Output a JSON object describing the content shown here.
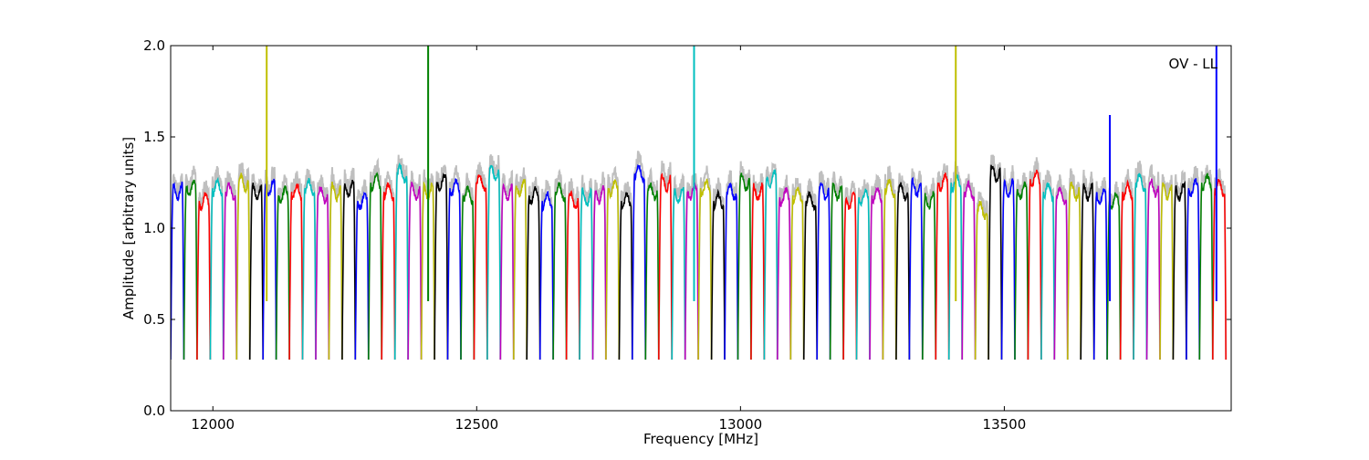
{
  "chart_data": {
    "type": "line",
    "xlabel": "Frequency [MHz]",
    "ylabel": "Amplitude [arbitrary units]",
    "annotation": "OV - LL",
    "xlim": [
      11920,
      13930
    ],
    "ylim": [
      0.0,
      2.0
    ],
    "xticks": [
      12000,
      12500,
      13000,
      13500
    ],
    "yticks": [
      0.0,
      0.5,
      1.0,
      1.5,
      2.0
    ],
    "xtick_labels": [
      "12000",
      "12500",
      "13000",
      "13500"
    ],
    "ytick_labels": [
      "0.0",
      "0.5",
      "1.0",
      "1.5",
      "2.0"
    ],
    "grid": false,
    "legend": "none",
    "band_start_mhz": 11920,
    "band_width_mhz": 25,
    "band_count": 80,
    "band_colors": [
      "#0000ff",
      "#008000",
      "#ff0000",
      "#00bfbf",
      "#bf00bf",
      "#bfbf00",
      "#000000"
    ],
    "background_color": "#bfbfbf",
    "band_levels": [
      1.2,
      1.22,
      1.15,
      1.22,
      1.2,
      1.25,
      1.2,
      1.22,
      1.18,
      1.2,
      1.22,
      1.18,
      1.2,
      1.22,
      1.15,
      1.25,
      1.2,
      1.3,
      1.2,
      1.2,
      1.25,
      1.22,
      1.18,
      1.25,
      1.3,
      1.2,
      1.22,
      1.18,
      1.15,
      1.2,
      1.15,
      1.17,
      1.18,
      1.22,
      1.15,
      1.3,
      1.2,
      1.25,
      1.18,
      1.2,
      1.22,
      1.15,
      1.2,
      1.25,
      1.2,
      1.27,
      1.17,
      1.18,
      1.15,
      1.2,
      1.2,
      1.15,
      1.17,
      1.18,
      1.22,
      1.2,
      1.22,
      1.15,
      1.25,
      1.25,
      1.2,
      1.1,
      1.3,
      1.22,
      1.2,
      1.27,
      1.2,
      1.18,
      1.2,
      1.2,
      1.17,
      1.15,
      1.2,
      1.25,
      1.22,
      1.2,
      1.2,
      1.22,
      1.25,
      1.22
    ],
    "spikes": [
      {
        "x": 12102,
        "y": 2.0,
        "color": "#bfbf00"
      },
      {
        "x": 12408,
        "y": 2.0,
        "color": "#008000"
      },
      {
        "x": 12912,
        "y": 2.0,
        "color": "#00bfbf"
      },
      {
        "x": 13408,
        "y": 2.0,
        "color": "#bfbf00"
      },
      {
        "x": 13700,
        "y": 1.62,
        "color": "#0000ff"
      },
      {
        "x": 13902,
        "y": 2.0,
        "color": "#0000ff"
      }
    ]
  }
}
